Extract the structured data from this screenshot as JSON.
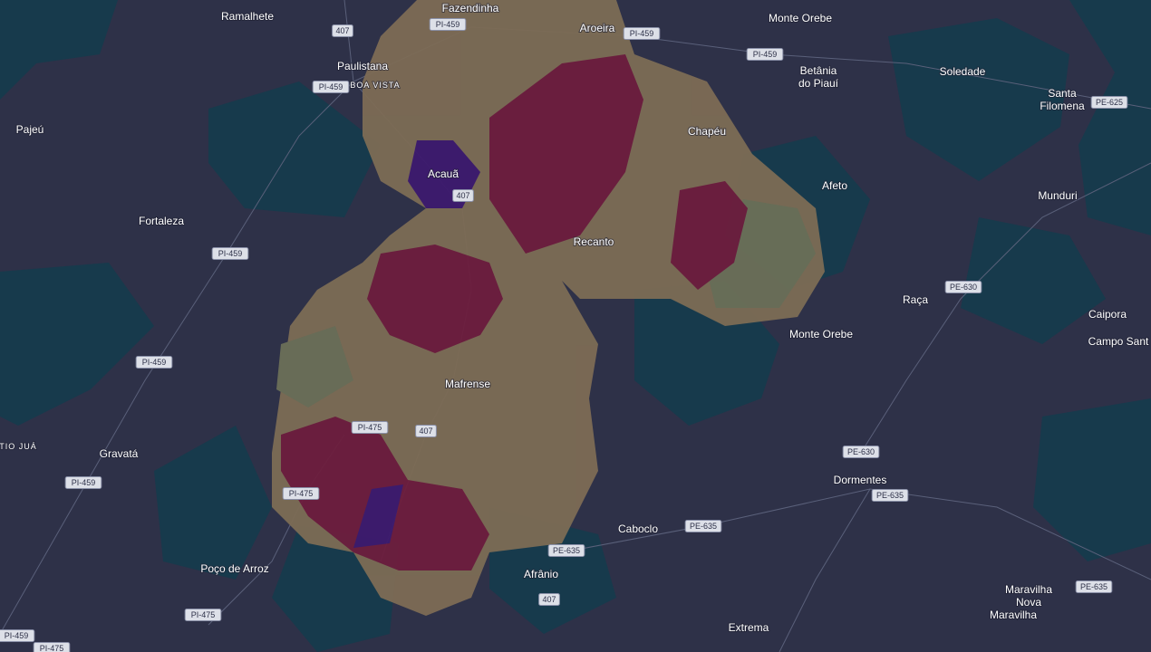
{
  "places": [
    {
      "lines": [
        "Ramalhete"
      ]
    },
    {
      "lines": [
        "Fazendinha"
      ]
    },
    {
      "lines": [
        "Aroeira"
      ]
    },
    {
      "lines": [
        "Monte Orebe"
      ]
    },
    {
      "lines": [
        "Paulistana"
      ]
    },
    {
      "lines": [
        "BOA VISTA"
      ]
    },
    {
      "lines": [
        "Betânia",
        "do Piauí"
      ]
    },
    {
      "lines": [
        "Soledade"
      ]
    },
    {
      "lines": [
        "Santa",
        "Filomena"
      ]
    },
    {
      "lines": [
        "Pajeú"
      ]
    },
    {
      "lines": [
        "Chapéu"
      ]
    },
    {
      "lines": [
        "Acauã"
      ]
    },
    {
      "lines": [
        "Afeto"
      ]
    },
    {
      "lines": [
        "Munduri"
      ]
    },
    {
      "lines": [
        "Fortaleza"
      ]
    },
    {
      "lines": [
        "Recanto"
      ]
    },
    {
      "lines": [
        "Raça"
      ]
    },
    {
      "lines": [
        "Caipora"
      ]
    },
    {
      "lines": [
        "Monte Orebe"
      ]
    },
    {
      "lines": [
        "Campo Sant"
      ]
    },
    {
      "lines": [
        "Mafrense"
      ]
    },
    {
      "lines": [
        "TIO JUÁ"
      ]
    },
    {
      "lines": [
        "Gravatá"
      ]
    },
    {
      "lines": [
        "Dormentes"
      ]
    },
    {
      "lines": [
        "Caboclo"
      ]
    },
    {
      "lines": [
        "Afrânio"
      ]
    },
    {
      "lines": [
        "Poço de Arroz"
      ]
    },
    {
      "lines": [
        "Maravilha",
        "Nova"
      ]
    },
    {
      "lines": [
        "Maravilha"
      ]
    },
    {
      "lines": [
        "Extrema"
      ]
    }
  ],
  "road_shields": [
    {
      "label": "407"
    },
    {
      "label": "PI-459"
    },
    {
      "label": "PI-459"
    },
    {
      "label": "PI-459"
    },
    {
      "label": "PI-459"
    },
    {
      "label": "407"
    },
    {
      "label": "PI-459"
    },
    {
      "label": "PE-625"
    },
    {
      "label": "PE-630"
    },
    {
      "label": "PI-459"
    },
    {
      "label": "PI-475"
    },
    {
      "label": "407"
    },
    {
      "label": "PE-630"
    },
    {
      "label": "PI-459"
    },
    {
      "label": "PI-475"
    },
    {
      "label": "PE-635"
    },
    {
      "label": "PE-635"
    },
    {
      "label": "PE-635"
    },
    {
      "label": "407"
    },
    {
      "label": "PE-635"
    },
    {
      "label": "PI-475"
    },
    {
      "label": "PI-459"
    },
    {
      "label": "PI-475"
    }
  ]
}
